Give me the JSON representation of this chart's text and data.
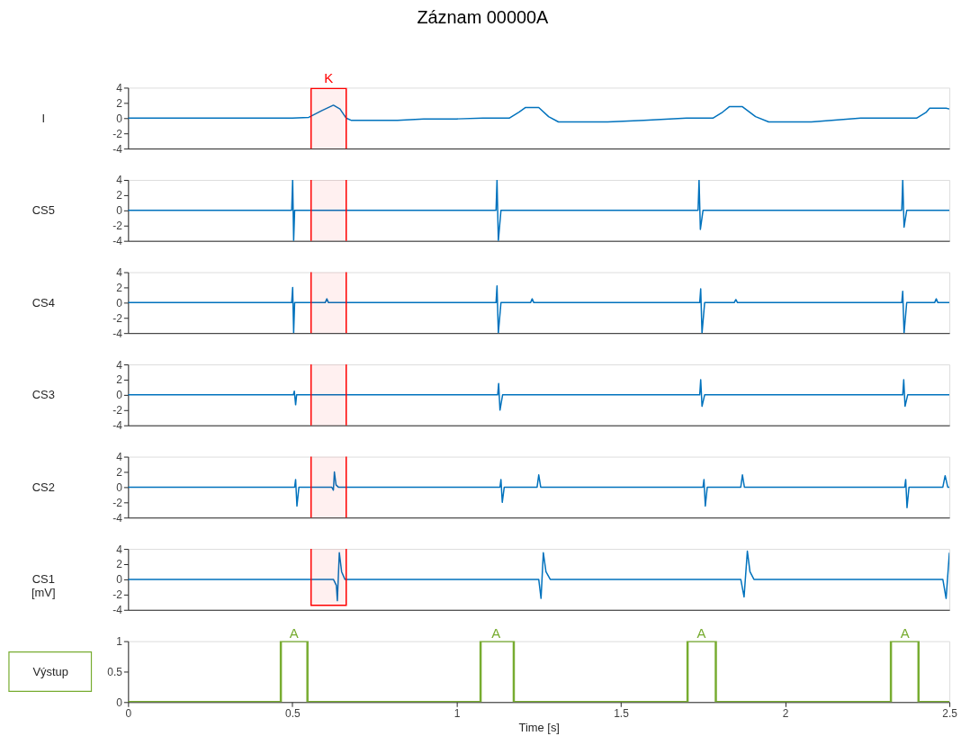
{
  "chart_data": [
    {
      "type": "line",
      "title": "Záznam 00000A",
      "ylabel": "I",
      "xlim": [
        0,
        2.5
      ],
      "ylim": [
        -4,
        4
      ],
      "yticks": [
        -4,
        -2,
        0,
        2,
        4
      ],
      "tick_labels": "y",
      "grid": false,
      "x": [
        0,
        0.1,
        0.2,
        0.3,
        0.4,
        0.5,
        0.55,
        0.59,
        0.625,
        0.645,
        0.664,
        0.68,
        0.75,
        0.82,
        0.9,
        1.0,
        1.08,
        1.16,
        1.19,
        1.21,
        1.25,
        1.28,
        1.31,
        1.4,
        1.46,
        1.57,
        1.7,
        1.78,
        1.81,
        1.83,
        1.87,
        1.91,
        1.95,
        2.08,
        2.23,
        2.3,
        2.4,
        2.43,
        2.44,
        2.49,
        2.5
      ],
      "series": [
        {
          "color": "#0072bd",
          "values": [
            0,
            0,
            0,
            0,
            0,
            0,
            0.1,
            1.0,
            1.7,
            1.2,
            0,
            -0.3,
            -0.3,
            -0.3,
            -0.1,
            -0.1,
            0,
            0,
            0.8,
            1.4,
            1.4,
            0.2,
            -0.5,
            -0.5,
            -0.5,
            -0.3,
            0,
            0,
            0.8,
            1.5,
            1.5,
            0.2,
            -0.5,
            -0.5,
            0,
            0,
            0,
            0.8,
            1.3,
            1.3,
            1.2
          ]
        }
      ],
      "bands": [
        {
          "axis": "x",
          "from": 0.557,
          "to": 0.664,
          "label": "K",
          "color": "#ff0000"
        }
      ]
    },
    {
      "type": "line",
      "ylabel": "CS5",
      "xlim": [
        0,
        2.5
      ],
      "ylim": [
        -4,
        4
      ],
      "yticks": [
        -4,
        -2,
        0,
        2,
        4
      ],
      "tick_labels": "y",
      "grid": false,
      "x": [
        0,
        0.1,
        0.2,
        0.3,
        0.4,
        0.498,
        0.501,
        0.504,
        0.507,
        0.515,
        0.6,
        0.7,
        0.8,
        0.9,
        1.0,
        1.1,
        1.12,
        1.123,
        1.127,
        1.135,
        1.2,
        1.3,
        1.4,
        1.5,
        1.6,
        1.7,
        1.735,
        1.738,
        1.742,
        1.75,
        1.8,
        1.9,
        2.0,
        2.1,
        2.2,
        2.3,
        2.355,
        2.358,
        2.362,
        2.37,
        2.4,
        2.5
      ],
      "series": [
        {
          "color": "#0072bd",
          "values": [
            0,
            0,
            0,
            0,
            0,
            0,
            4,
            -4,
            0,
            0,
            0,
            0,
            0,
            0,
            0,
            0,
            0,
            4,
            -4,
            0,
            0,
            0,
            0,
            0,
            0,
            0,
            0,
            4,
            -2.5,
            0,
            0,
            0,
            0,
            0,
            0,
            0,
            0,
            4,
            -2.2,
            0,
            0,
            0
          ]
        }
      ],
      "bands": [
        {
          "axis": "x",
          "from": 0.557,
          "to": 0.664,
          "color": "#ff0000"
        }
      ]
    },
    {
      "type": "line",
      "ylabel": "CS4",
      "xlim": [
        0,
        2.5
      ],
      "ylim": [
        -4,
        4
      ],
      "yticks": [
        -4,
        -2,
        0,
        2,
        4
      ],
      "tick_labels": "y",
      "grid": false,
      "x": [
        0,
        0.1,
        0.2,
        0.3,
        0.4,
        0.498,
        0.501,
        0.504,
        0.507,
        0.515,
        0.6,
        0.605,
        0.61,
        0.7,
        0.8,
        0.9,
        1.0,
        1.1,
        1.12,
        1.123,
        1.127,
        1.135,
        1.225,
        1.23,
        1.235,
        1.3,
        1.4,
        1.5,
        1.6,
        1.7,
        1.74,
        1.743,
        1.747,
        1.755,
        1.845,
        1.85,
        1.855,
        1.9,
        2.0,
        2.1,
        2.2,
        2.3,
        2.355,
        2.358,
        2.362,
        2.37,
        2.455,
        2.46,
        2.465,
        2.5
      ],
      "series": [
        {
          "color": "#0072bd",
          "values": [
            0,
            0,
            0,
            0,
            0,
            0,
            2,
            -4,
            0,
            0,
            0,
            0.5,
            0,
            0,
            0,
            0,
            0,
            0,
            0,
            2.2,
            -4,
            0,
            0,
            0.5,
            0,
            0,
            0,
            0,
            0,
            0,
            0,
            1.8,
            -4,
            0,
            0,
            0.4,
            0,
            0,
            0,
            0,
            0,
            0,
            0,
            1.5,
            -4,
            0,
            0,
            0.5,
            0,
            0
          ]
        }
      ],
      "bands": [
        {
          "axis": "x",
          "from": 0.557,
          "to": 0.664,
          "color": "#ff0000"
        }
      ]
    },
    {
      "type": "line",
      "ylabel": "CS3",
      "xlim": [
        0,
        2.5
      ],
      "ylim": [
        -4,
        4
      ],
      "yticks": [
        -4,
        -2,
        0,
        2,
        4
      ],
      "tick_labels": "y",
      "grid": false,
      "x": [
        0,
        0.1,
        0.2,
        0.3,
        0.4,
        0.503,
        0.506,
        0.51,
        0.513,
        0.52,
        0.6,
        0.7,
        0.8,
        0.9,
        1.0,
        1.1,
        1.125,
        1.128,
        1.132,
        1.14,
        1.2,
        1.3,
        1.4,
        1.5,
        1.6,
        1.7,
        1.74,
        1.743,
        1.747,
        1.755,
        1.8,
        1.9,
        2.0,
        2.1,
        2.2,
        2.3,
        2.358,
        2.361,
        2.365,
        2.373,
        2.4,
        2.5
      ],
      "series": [
        {
          "color": "#0072bd",
          "values": [
            0,
            0,
            0,
            0,
            0,
            0,
            0.5,
            -1.3,
            0,
            0,
            0,
            0,
            0,
            0,
            0,
            0,
            0,
            1.5,
            -2,
            0,
            0,
            0,
            0,
            0,
            0,
            0,
            0,
            2,
            -1.5,
            0,
            0,
            0,
            0,
            0,
            0,
            0,
            0,
            2,
            -1.5,
            0,
            0,
            0
          ]
        }
      ],
      "bands": [
        {
          "axis": "x",
          "from": 0.557,
          "to": 0.664,
          "color": "#ff0000"
        }
      ]
    },
    {
      "type": "line",
      "ylabel": "CS2",
      "xlim": [
        0,
        2.5
      ],
      "ylim": [
        -4,
        4
      ],
      "yticks": [
        -4,
        -2,
        0,
        2,
        4
      ],
      "tick_labels": "y",
      "grid": false,
      "x": [
        0,
        0.1,
        0.2,
        0.3,
        0.4,
        0.507,
        0.51,
        0.514,
        0.52,
        0.6,
        0.62,
        0.625,
        0.628,
        0.633,
        0.64,
        0.7,
        0.8,
        0.9,
        1.0,
        1.1,
        1.132,
        1.135,
        1.139,
        1.145,
        1.245,
        1.25,
        1.256,
        1.3,
        1.4,
        1.5,
        1.6,
        1.7,
        1.75,
        1.753,
        1.757,
        1.763,
        1.865,
        1.87,
        1.876,
        1.9,
        2.0,
        2.1,
        2.2,
        2.3,
        2.364,
        2.367,
        2.371,
        2.377,
        2.48,
        2.487,
        2.495,
        2.5
      ],
      "series": [
        {
          "color": "#0072bd",
          "values": [
            0,
            0,
            0,
            0,
            0,
            0,
            1,
            -2.5,
            0,
            0,
            0,
            -0.4,
            2,
            0.3,
            0,
            0,
            0,
            0,
            0,
            0,
            0,
            1,
            -2,
            0,
            0,
            1.6,
            0,
            0,
            0,
            0,
            0,
            0,
            0,
            1,
            -2.5,
            0,
            0,
            1.6,
            0,
            0,
            0,
            0,
            0,
            0,
            0,
            1,
            -2.7,
            0,
            0,
            1.5,
            0,
            0
          ]
        }
      ],
      "bands": [
        {
          "axis": "x",
          "from": 0.557,
          "to": 0.664,
          "color": "#ff0000"
        }
      ]
    },
    {
      "type": "line",
      "ylabel": "CS1 [mV]",
      "xlim": [
        0,
        2.5
      ],
      "ylim": [
        -4,
        4
      ],
      "yticks": [
        -4,
        -2,
        0,
        2,
        4
      ],
      "tick_labels": "y",
      "grid": false,
      "x": [
        0,
        0.1,
        0.2,
        0.3,
        0.4,
        0.5,
        0.6,
        0.625,
        0.634,
        0.637,
        0.643,
        0.65,
        0.66,
        0.7,
        0.8,
        0.9,
        1.0,
        1.1,
        1.2,
        1.25,
        1.257,
        1.264,
        1.272,
        1.285,
        1.3,
        1.4,
        1.5,
        1.6,
        1.7,
        1.8,
        1.865,
        1.875,
        1.885,
        1.893,
        1.905,
        2.0,
        2.1,
        2.2,
        2.3,
        2.4,
        2.48,
        2.49,
        2.5
      ],
      "series": [
        {
          "color": "#0072bd",
          "values": [
            0,
            0,
            0,
            0,
            0,
            0,
            0,
            0,
            -0.8,
            -2.8,
            3.5,
            1,
            0,
            0,
            0,
            0,
            0,
            0,
            0,
            0,
            -2.5,
            3.5,
            1,
            0,
            0,
            0,
            0,
            0,
            0,
            0,
            0,
            -2.3,
            3.7,
            1,
            0,
            0,
            0,
            0,
            0,
            0,
            0,
            -2.5,
            3.5
          ]
        }
      ],
      "bands": [
        {
          "axis": "x",
          "from": 0.557,
          "to": 0.664,
          "color": "#ff0000"
        }
      ]
    },
    {
      "type": "line",
      "ylabel": "Výstup",
      "xlabel": "Time [s]",
      "xlim": [
        0,
        2.5
      ],
      "ylim": [
        0,
        1
      ],
      "xticks": [
        0,
        0.5,
        1,
        1.5,
        2,
        2.5
      ],
      "yticks": [
        0,
        0.5,
        1
      ],
      "grid": false,
      "x": [
        0,
        0.465,
        0.465,
        0.546,
        0.546,
        1.073,
        1.073,
        1.174,
        1.174,
        1.703,
        1.703,
        1.789,
        1.789,
        2.322,
        2.322,
        2.406,
        2.406,
        2.5
      ],
      "series": [
        {
          "color": "#77ac30",
          "values": [
            0,
            0,
            1,
            1,
            0,
            0,
            1,
            1,
            0,
            0,
            1,
            1,
            0,
            0,
            1,
            1,
            0,
            0
          ]
        }
      ],
      "annotations": [
        {
          "text": "A",
          "x": 0.505,
          "y": 1
        },
        {
          "text": "A",
          "x": 1.12,
          "y": 1
        },
        {
          "text": "A",
          "x": 1.745,
          "y": 1
        },
        {
          "text": "A",
          "x": 2.365,
          "y": 1
        }
      ]
    }
  ]
}
